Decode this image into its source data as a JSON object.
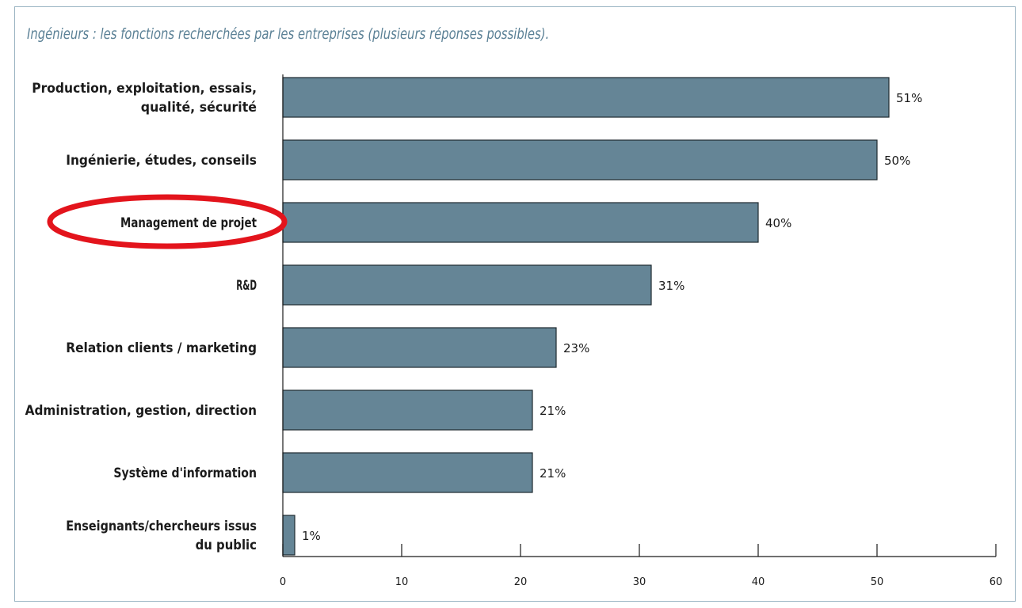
{
  "colors": {
    "bar_fill": "#658596",
    "bar_stroke": "#1e2a30",
    "title": "#5b8196",
    "highlight": "#e3141c",
    "axis": "#1b1b1b",
    "frame": "#9ab4c2"
  },
  "chart_data": {
    "type": "bar",
    "orientation": "horizontal",
    "title": "Ingénieurs : les fonctions recherchées par les entreprises (plusieurs réponses possibles).",
    "categories": [
      [
        "Production, exploitation, essais,",
        "qualité, sécurité"
      ],
      [
        "Ingénierie, études, conseils"
      ],
      [
        "Management de projet"
      ],
      [
        "R&D"
      ],
      [
        "Relation clients / marketing"
      ],
      [
        "Administration, gestion, direction"
      ],
      [
        "Système d'information"
      ],
      [
        "Enseignants/chercheurs issus",
        "du public"
      ]
    ],
    "values": [
      51,
      50,
      40,
      31,
      23,
      21,
      21,
      1
    ],
    "value_labels": [
      "51%",
      "50%",
      "40%",
      "31%",
      "23%",
      "21%",
      "21%",
      "1%"
    ],
    "xlim": [
      0,
      60
    ],
    "xticks": [
      0,
      10,
      20,
      30,
      40,
      50,
      60
    ],
    "xtick_labels": [
      "0",
      "10",
      "20",
      "30",
      "40",
      "50",
      "60"
    ],
    "xlabel": "",
    "ylabel": "",
    "grid": false,
    "legend": "none",
    "highlighted_category": "Management de projet"
  }
}
